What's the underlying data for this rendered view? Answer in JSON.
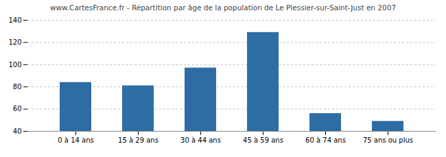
{
  "chart_data": {
    "type": "bar",
    "title": "www.CartesFrance.fr - Répartition par âge de la population de Le Plessier-sur-Saint-Just en 2007",
    "categories": [
      "0 à 14 ans",
      "15 à 29 ans",
      "30 à 44 ans",
      "45 à 59 ans",
      "60 à 74 ans",
      "75 ans ou plus"
    ],
    "values": [
      84,
      81,
      97,
      129,
      56,
      49
    ],
    "color": "#2e6da4",
    "ylim": [
      40,
      140
    ],
    "yticks": [
      40,
      60,
      80,
      100,
      120,
      140
    ],
    "grid": true
  }
}
